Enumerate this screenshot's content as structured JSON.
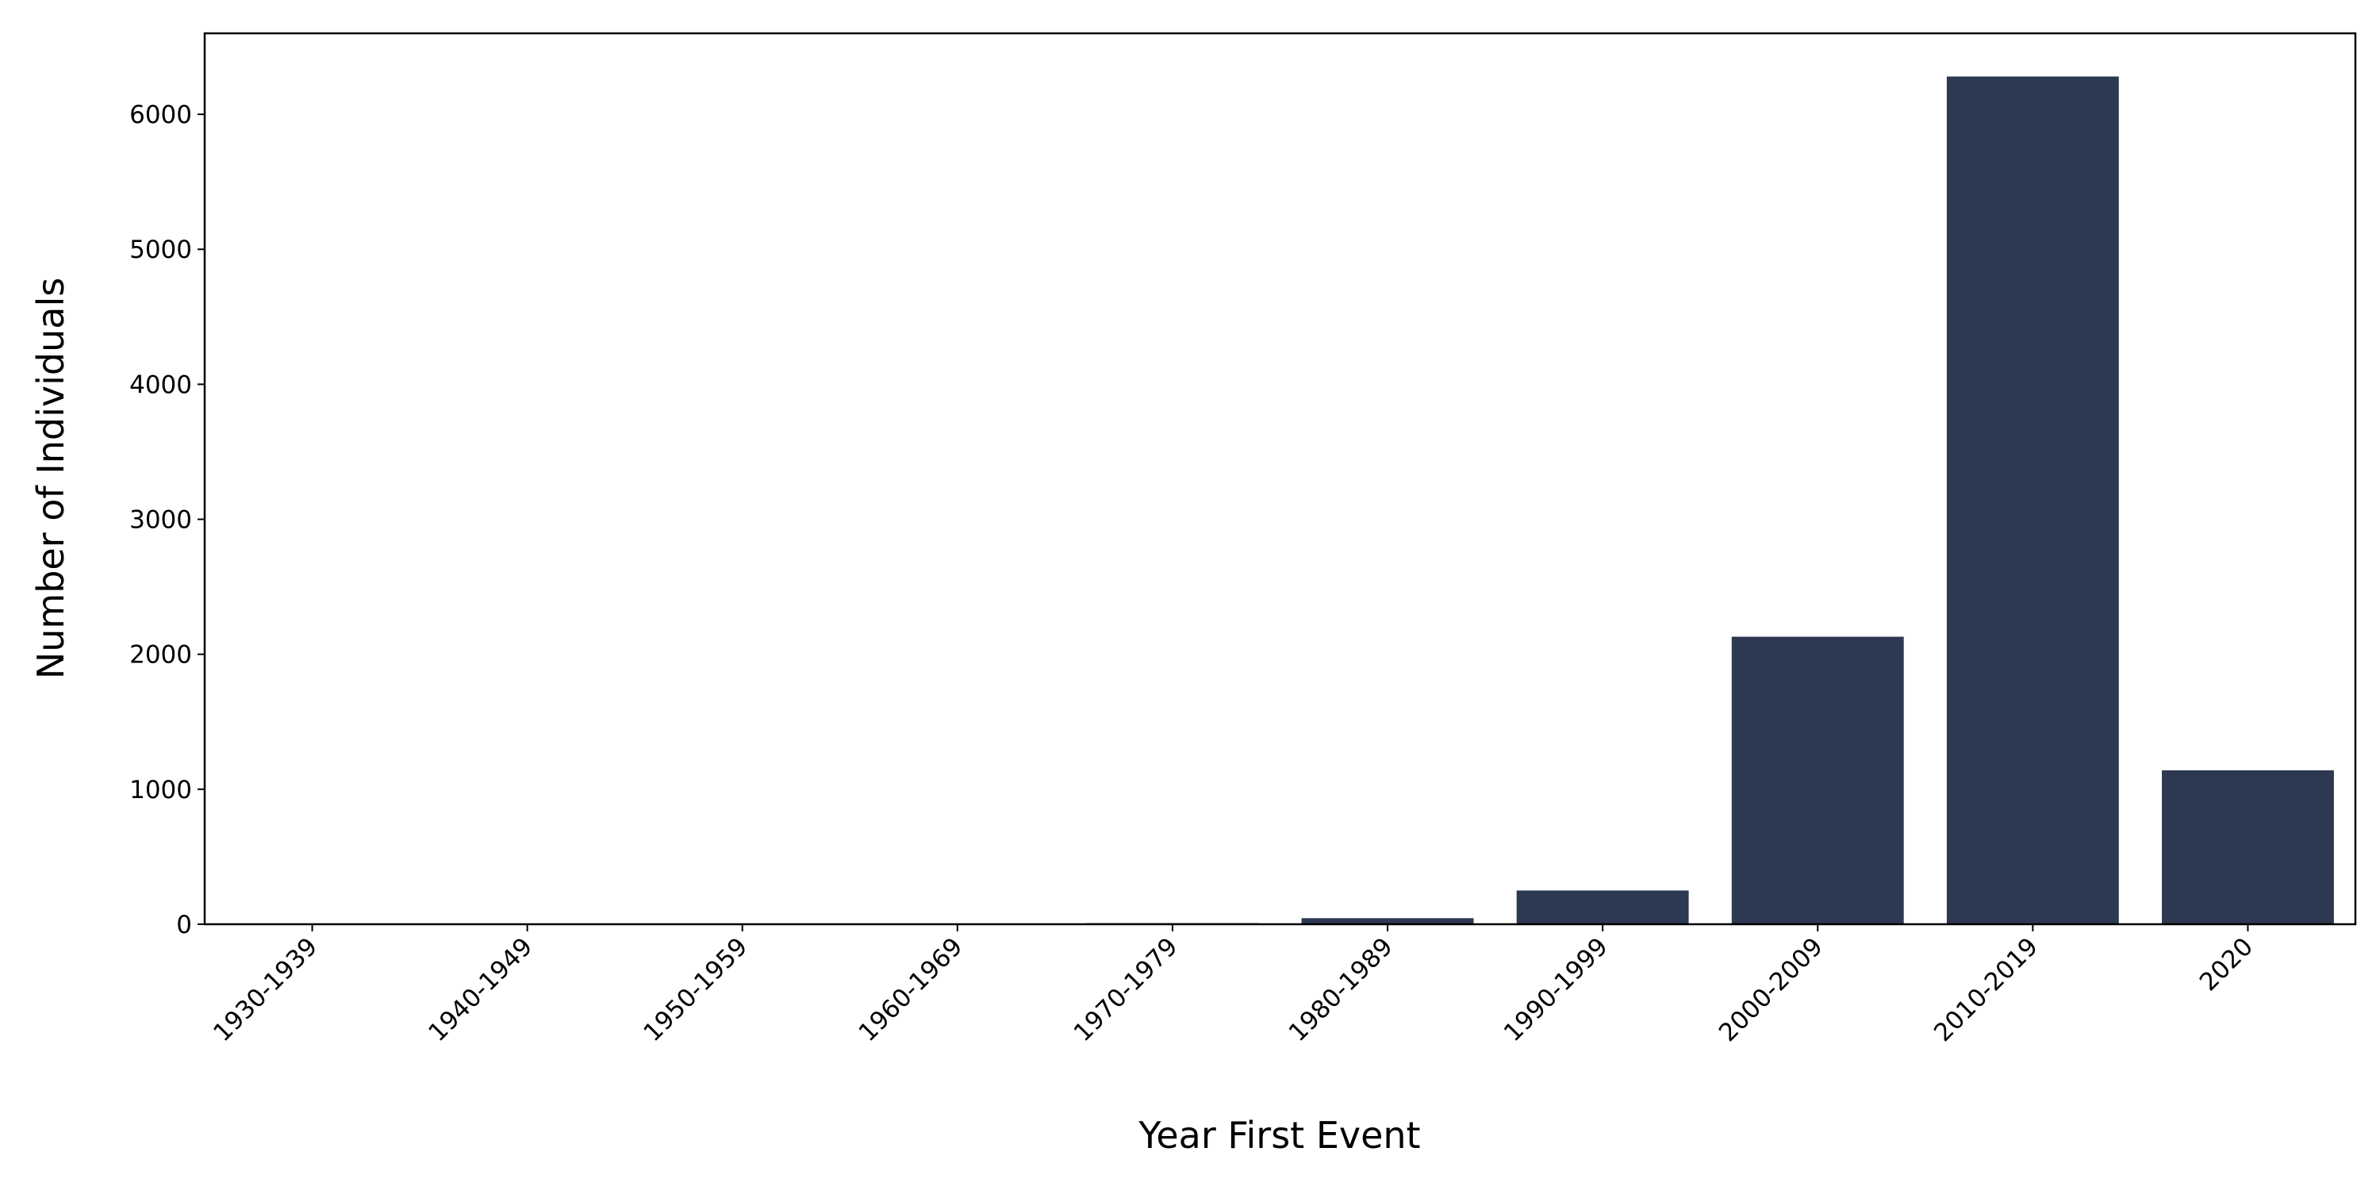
{
  "chart_data": {
    "type": "bar",
    "x_label": "Year First Event",
    "y_label": "Number of Individuals",
    "categories": [
      "1930-1939",
      "1940-1949",
      "1950-1959",
      "1960-1969",
      "1970-1979",
      "1980-1989",
      "1990-1999",
      "2000-2009",
      "2010-2019",
      "2020"
    ],
    "values": [
      1,
      5,
      5,
      2,
      8,
      45,
      250,
      2130,
      6280,
      1140
    ],
    "color": "#2d3851",
    "ylim": [
      0,
      6600
    ],
    "yticks": [
      0,
      1000,
      2000,
      3000,
      4000,
      5000,
      6000
    ]
  }
}
